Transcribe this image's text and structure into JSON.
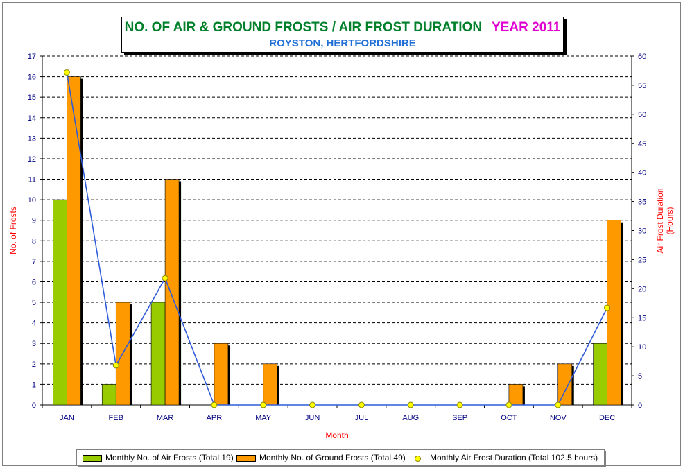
{
  "title": {
    "main": "NO. OF AIR & GROUND FROSTS / AIR FROST DURATION",
    "year": "YEAR 2011",
    "subtitle": "ROYSTON, HERTFORDSHIRE"
  },
  "colors": {
    "air_frosts": "#99cc00",
    "ground_frosts": "#ff9900",
    "duration_line": "#2f5bd9",
    "duration_marker": "#ffff00",
    "axis_label": "#ff0000",
    "tick_label": "#000080"
  },
  "legend": {
    "air": "Monthly No. of Air Frosts (Total 19)",
    "ground": "Monthly No. of Ground Frosts (Total 49)",
    "duration": "Monthly Air Frost Duration (Total 102.5 hours)"
  },
  "chart_data": {
    "type": "bar",
    "categories": [
      "JAN",
      "FEB",
      "MAR",
      "APR",
      "MAY",
      "JUN",
      "JUL",
      "AUG",
      "SEP",
      "OCT",
      "NOV",
      "DEC"
    ],
    "series": [
      {
        "name": "Monthly No. of Air Frosts (Total 19)",
        "type": "bar",
        "axis": "left",
        "values": [
          10,
          1,
          5,
          0,
          0,
          0,
          0,
          0,
          0,
          0,
          0,
          3
        ]
      },
      {
        "name": "Monthly No. of Ground Frosts (Total 49)",
        "type": "bar",
        "axis": "left",
        "values": [
          16,
          5,
          11,
          3,
          2,
          0,
          0,
          0,
          0,
          1,
          2,
          9
        ]
      },
      {
        "name": "Monthly Air Frost Duration (Total 102.5 hours)",
        "type": "line",
        "axis": "right",
        "values": [
          57.2,
          6.8,
          21.8,
          0,
          0,
          0,
          0,
          0,
          0,
          0,
          0,
          16.7
        ]
      }
    ],
    "xlabel": "Month",
    "ylabel": "No. of Frosts",
    "y2label": "Air Frost Duration (Hours)",
    "ylim": [
      0,
      17
    ],
    "y2lim": [
      0,
      60
    ],
    "yticks": [
      0,
      1,
      2,
      3,
      4,
      5,
      6,
      7,
      8,
      9,
      10,
      11,
      12,
      13,
      14,
      15,
      16,
      17
    ],
    "y2ticks": [
      0,
      5,
      10,
      15,
      20,
      25,
      30,
      35,
      40,
      45,
      50,
      55,
      60
    ],
    "grid": true,
    "legend_position": "bottom"
  }
}
